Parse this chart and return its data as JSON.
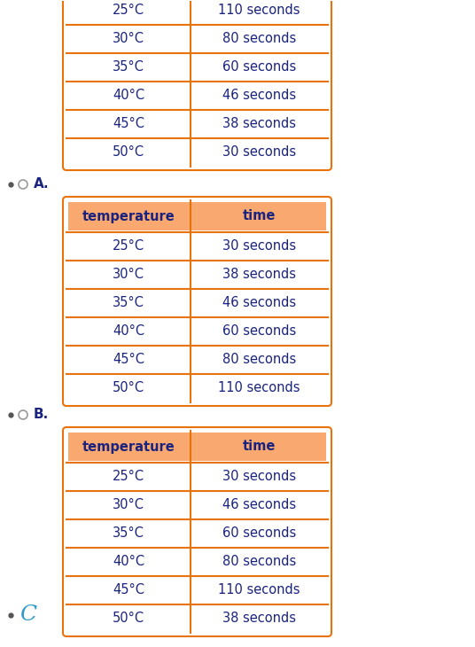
{
  "bg_color": "#ffffff",
  "border_color": "#E8720C",
  "header_bg": "#F9A870",
  "text_color": "#1a237e",
  "bullet_color": "#999999",
  "figsize": [
    5.36,
    7.3
  ],
  "dpi": 100,
  "table0": {
    "temperatures": [
      "25°C",
      "30°C",
      "35°C",
      "40°C",
      "45°C",
      "50°C"
    ],
    "times": [
      "110 seconds",
      "80 seconds",
      "60 seconds",
      "46 seconds",
      "38 seconds",
      "30 seconds"
    ]
  },
  "table1": {
    "header": [
      "temperature",
      "time"
    ],
    "temperatures": [
      "25°C",
      "30°C",
      "35°C",
      "40°C",
      "45°C",
      "50°C"
    ],
    "times": [
      "30 seconds",
      "38 seconds",
      "46 seconds",
      "60 seconds",
      "80 seconds",
      "110 seconds"
    ]
  },
  "table2": {
    "header": [
      "temperature",
      "time"
    ],
    "temperatures": [
      "25°C",
      "30°C",
      "35°C",
      "40°C",
      "45°C",
      "50°C"
    ],
    "times": [
      "30 seconds",
      "46 seconds",
      "60 seconds",
      "80 seconds",
      "110 seconds",
      "38 seconds"
    ]
  },
  "label_A": "A.",
  "label_B": "B.",
  "label_C": "C"
}
